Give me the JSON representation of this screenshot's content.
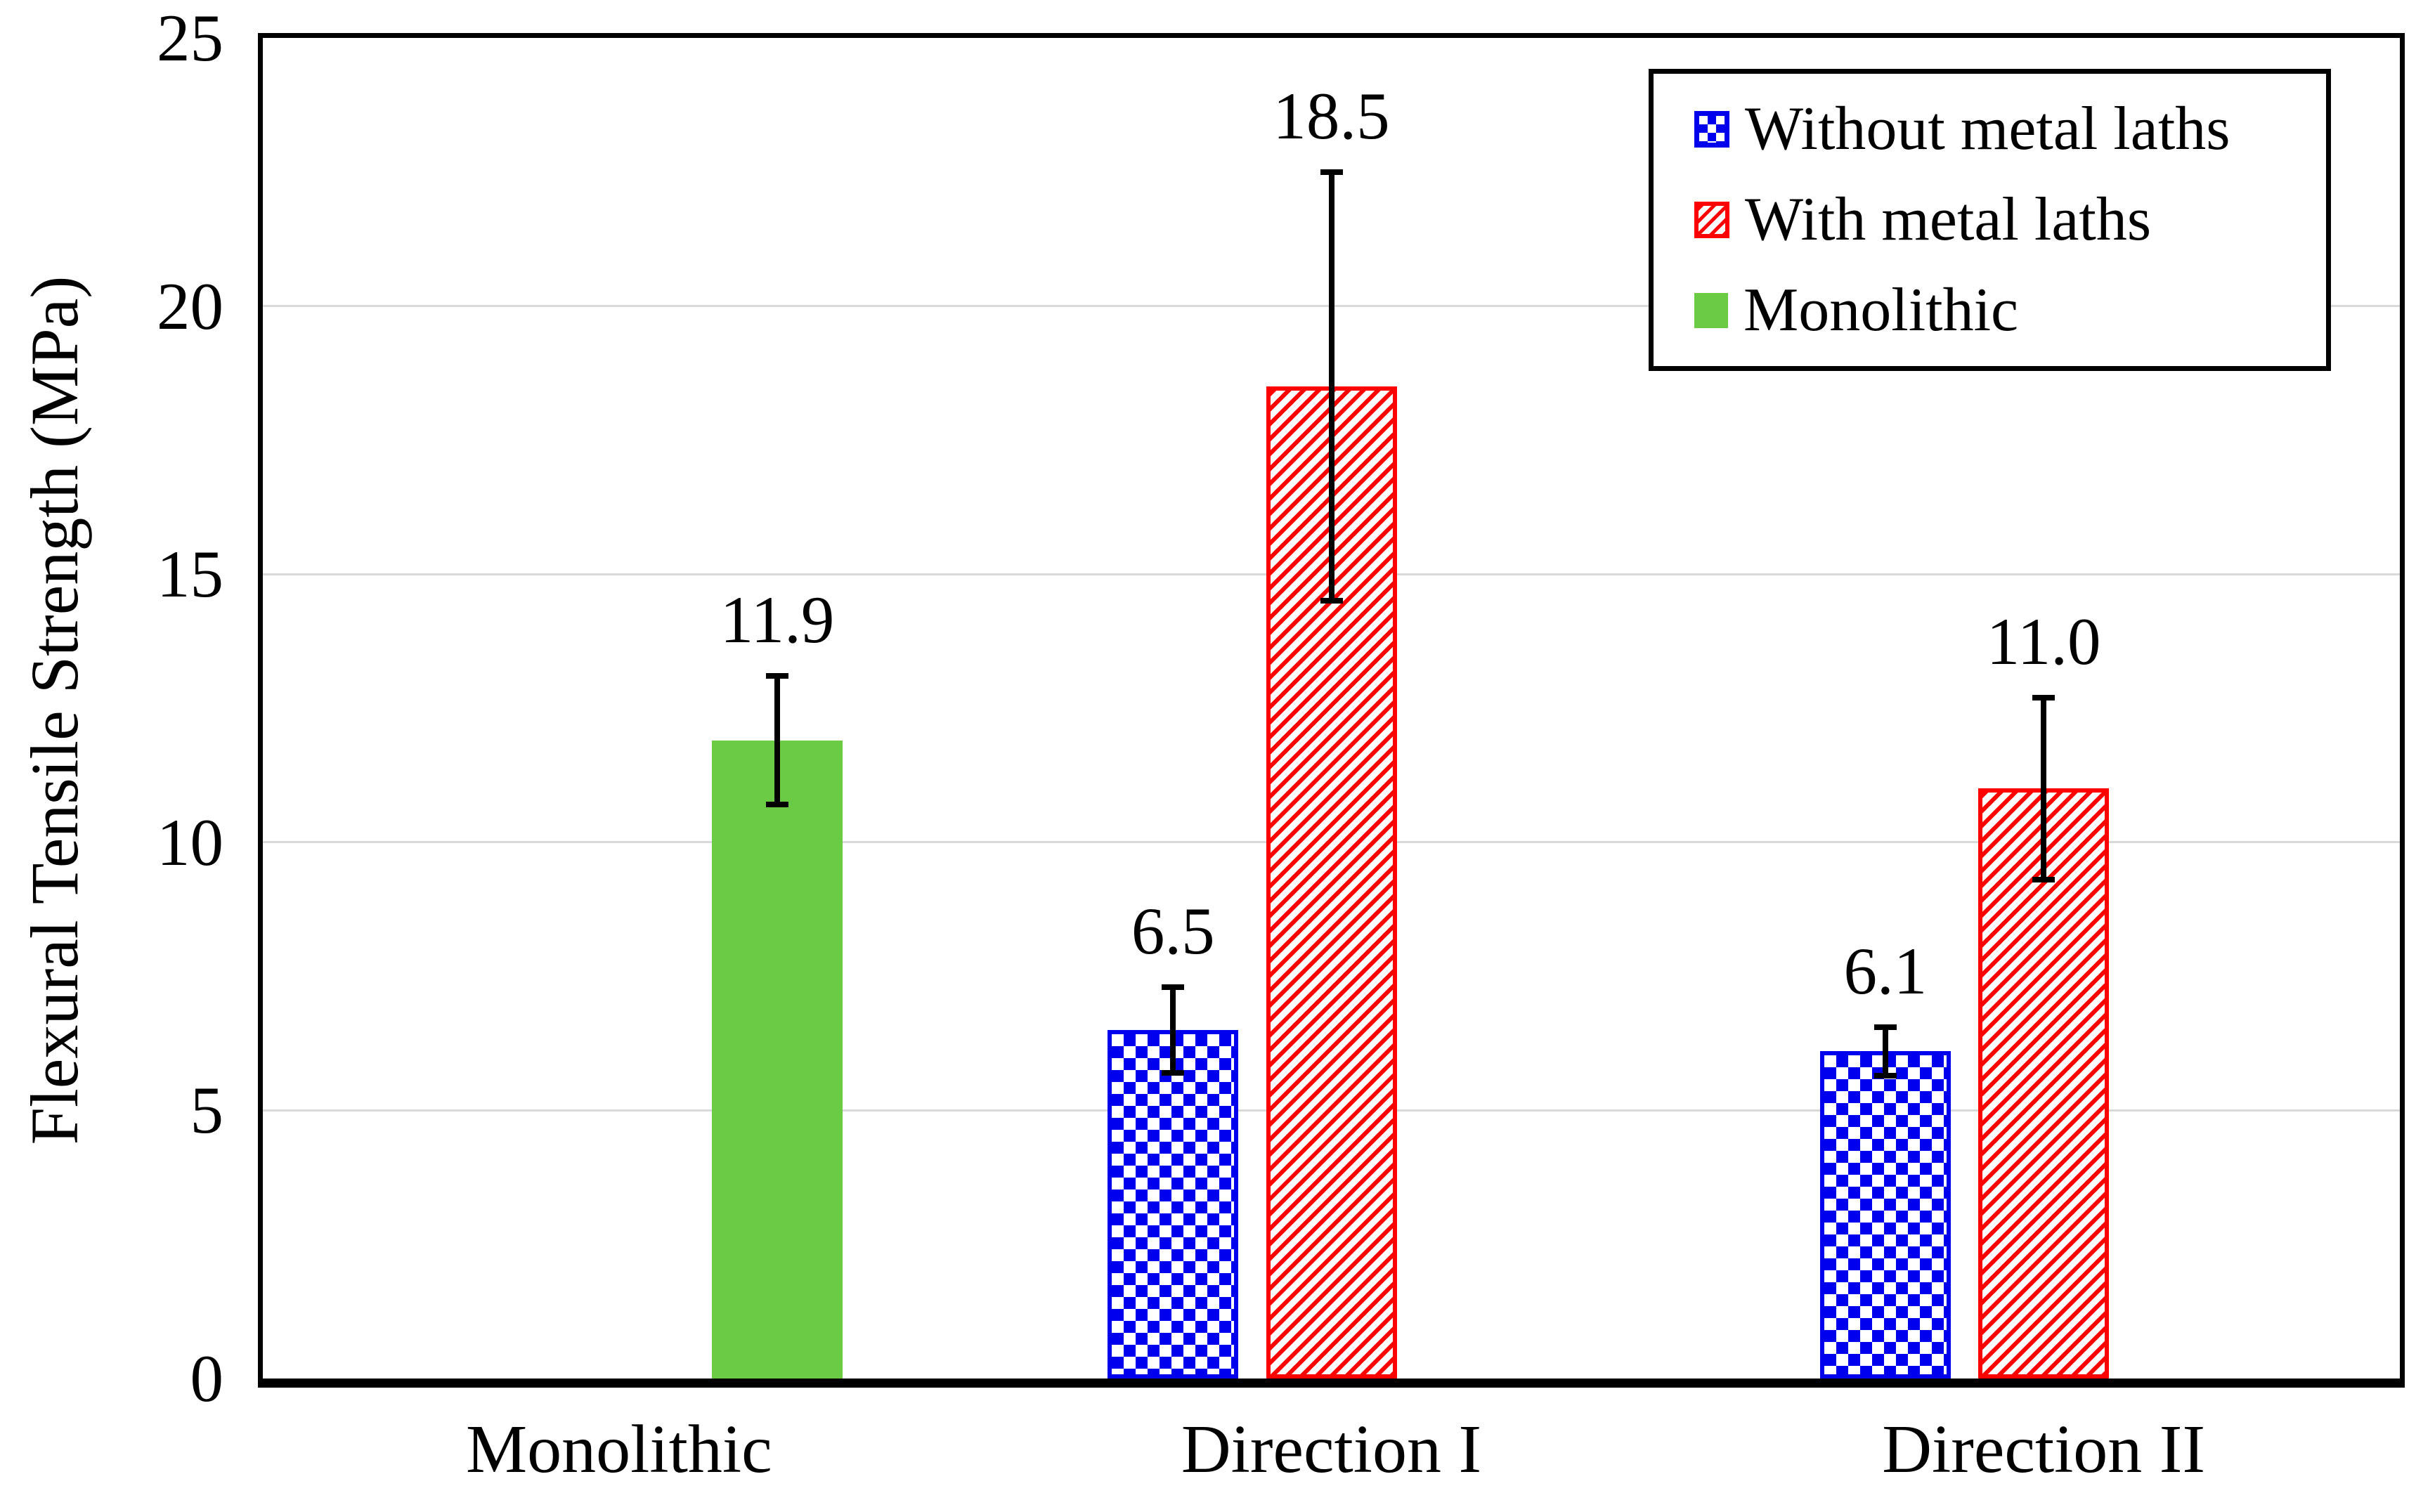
{
  "chart_data": {
    "type": "bar",
    "title": "",
    "xlabel": "",
    "ylabel": "Flexural Tensile Strength (MPa)",
    "ylim": [
      0,
      25
    ],
    "yticks": [
      0,
      5,
      10,
      15,
      20,
      25
    ],
    "gridline_values": [
      5,
      10,
      15,
      20
    ],
    "grid": "horizontal",
    "value_labels_shown": true,
    "categories": [
      "Monolithic",
      "Direction I",
      "Direction II"
    ],
    "series": [
      {
        "name": "Without metal laths",
        "pattern": "checker",
        "color": "#0000EE",
        "values": [
          null,
          6.5,
          6.1
        ],
        "errors": [
          null,
          0.8,
          0.45
        ],
        "labels": [
          null,
          "6.5",
          "6.1"
        ]
      },
      {
        "name": "With metal laths",
        "pattern": "stripes",
        "color": "#FF0000",
        "values": [
          null,
          18.5,
          11.0
        ],
        "errors": [
          null,
          4.0,
          1.7
        ],
        "labels": [
          null,
          "18.5",
          "11.0"
        ]
      },
      {
        "name": "Monolithic",
        "pattern": "solid",
        "color": "#6BCB45",
        "values": [
          11.9,
          null,
          null
        ],
        "errors": [
          1.2,
          null,
          null
        ],
        "labels": [
          "11.9",
          null,
          null
        ]
      }
    ],
    "legend": {
      "position": "top-right",
      "border": true
    }
  },
  "colors": {
    "axis": "#000000",
    "gridline": "#D9D9D9",
    "error_bar": "#000000",
    "background": "#FFFFFF"
  }
}
